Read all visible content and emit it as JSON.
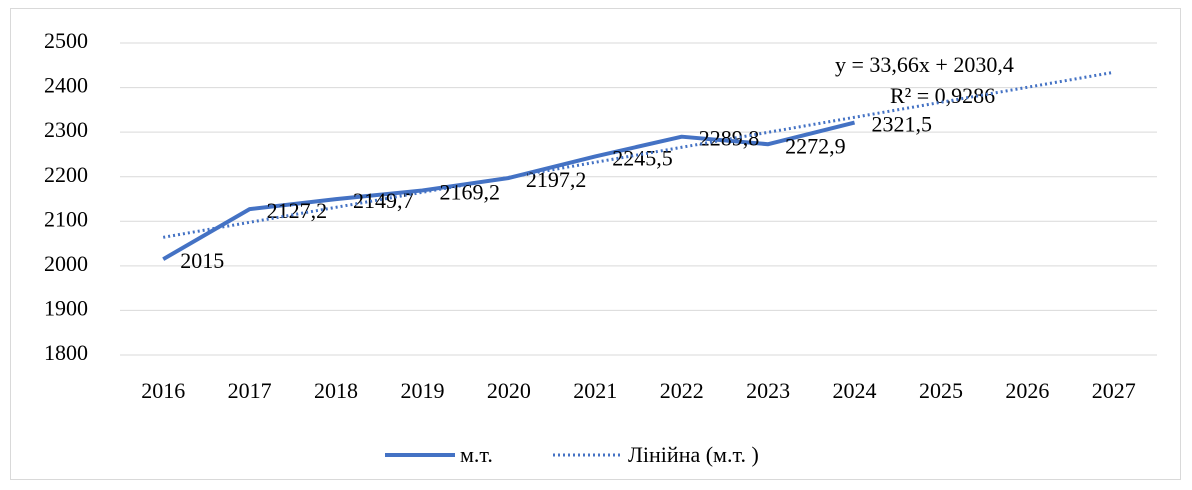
{
  "chart_data": {
    "type": "line",
    "categories": [
      "2016",
      "2017",
      "2018",
      "2019",
      "2020",
      "2021",
      "2022",
      "2023",
      "2024",
      "2025",
      "2026",
      "2027"
    ],
    "series": [
      {
        "name": "м.т.",
        "color": "#4472c4",
        "values": [
          2015,
          2127.2,
          2149.7,
          2169.2,
          2197.2,
          2245.5,
          2289.8,
          2272.9,
          2321.5,
          null,
          null,
          null
        ],
        "value_labels": [
          "2015",
          "2127,2",
          "2149,7",
          "2169,2",
          "2197,2",
          "2245,5",
          "2289,8",
          "2272,9",
          "2321,5",
          null,
          null,
          null
        ]
      },
      {
        "name": "Лінійна (м.т. )",
        "color": "#4472c4",
        "style": "dotted",
        "values": [
          2064.06,
          2097.72,
          2131.38,
          2165.04,
          2198.7,
          2232.36,
          2266.02,
          2299.68,
          2333.34,
          2367,
          2400.66,
          2434.32
        ]
      }
    ],
    "annotations": [
      "y = 33,66x + 2030,4",
      "R² = 0,9286"
    ],
    "ylim": [
      1800,
      2500
    ],
    "yticks": [
      1800,
      1900,
      2000,
      2100,
      2200,
      2300,
      2400,
      2500
    ],
    "grid": true,
    "legend": "bottom"
  }
}
